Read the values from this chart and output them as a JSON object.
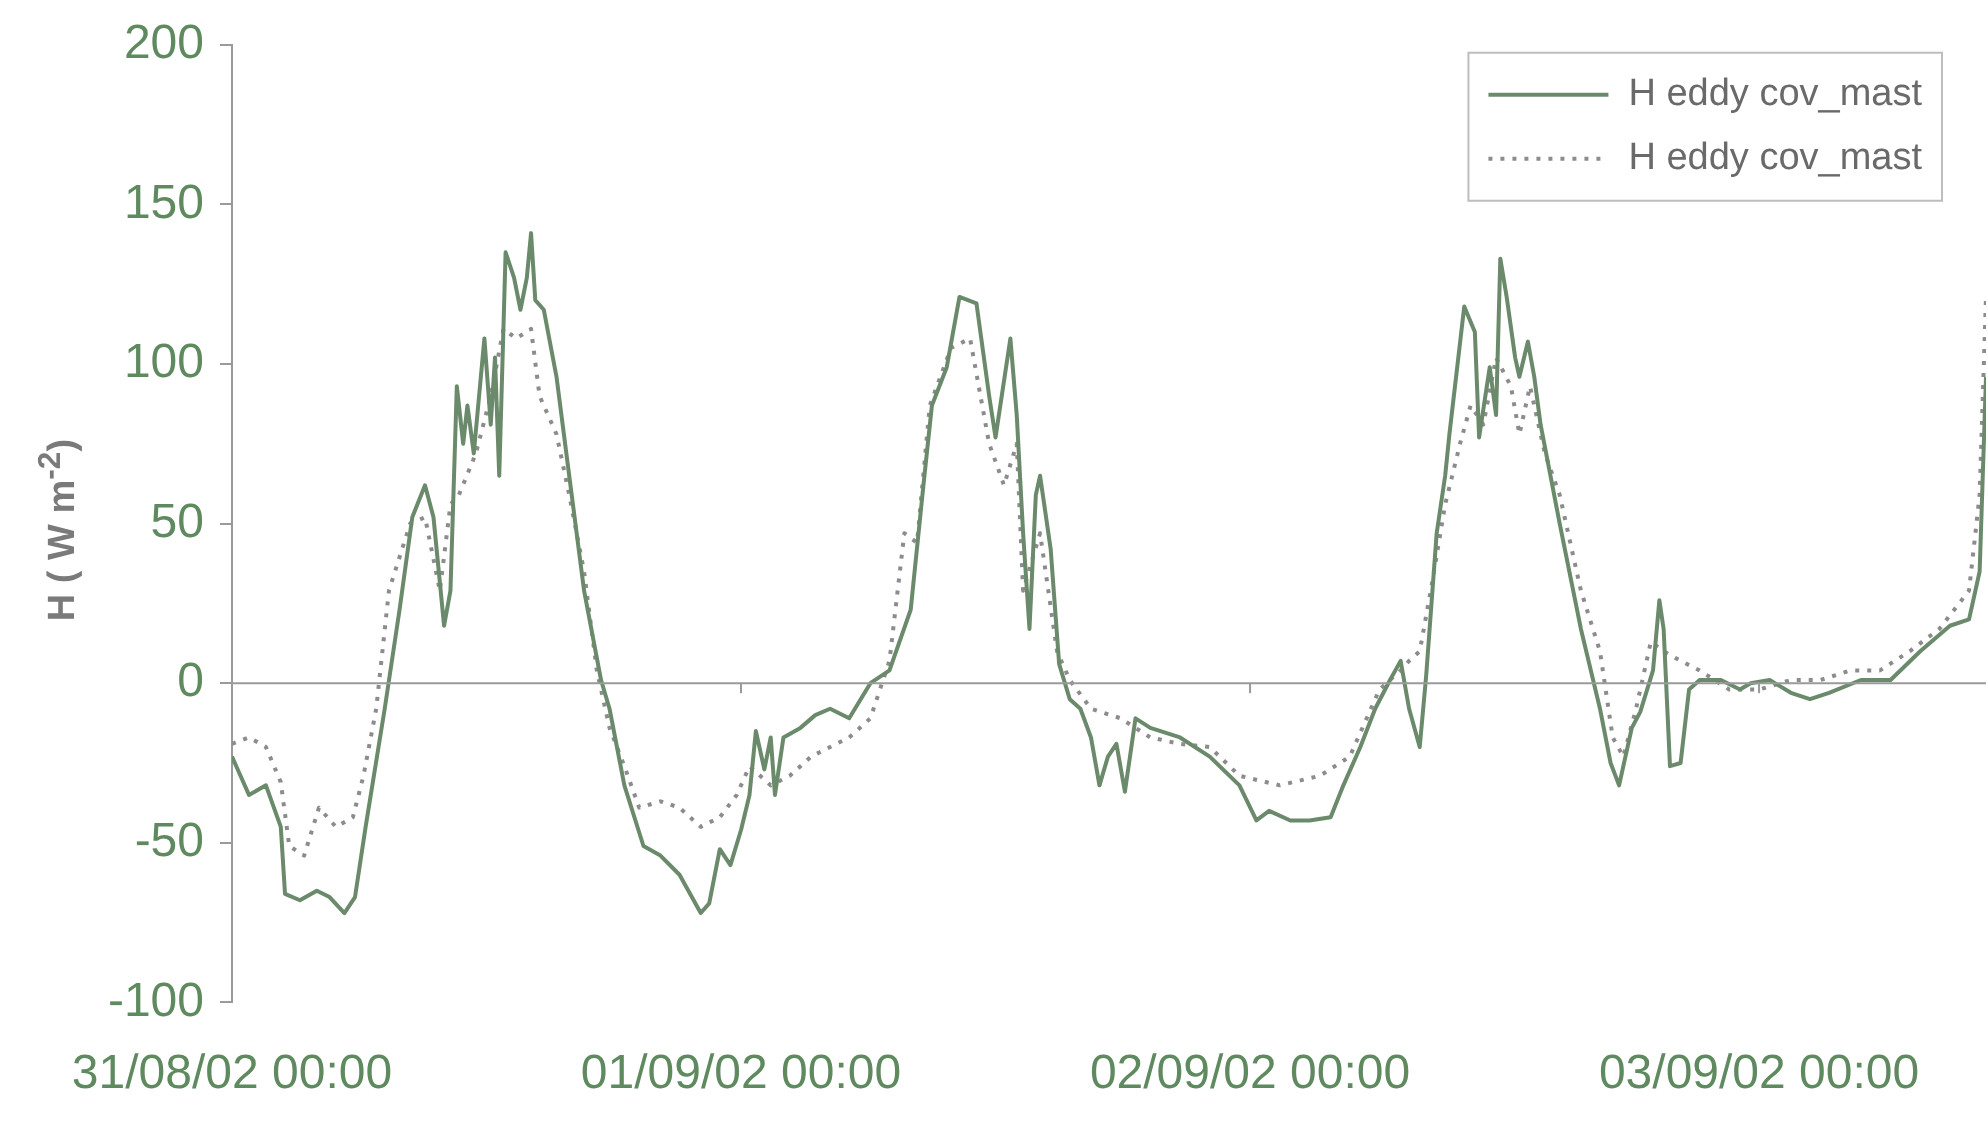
{
  "chart_data": {
    "type": "line",
    "ylabel": "H ( W m$^{-2}$)",
    "xlim": [
      "--08-31T00:00",
      "--09-03T10:42"
    ],
    "ylim": [
      -100,
      200
    ],
    "xticks": [
      {
        "value": "--08-31T00:00",
        "label": "31/08/02 00:00"
      },
      {
        "value": "--09-01T00:00",
        "label": "01/09/02 00:00"
      },
      {
        "value": "--09-02T00:00",
        "label": "02/09/02 00:00"
      },
      {
        "value": "--09-03T00:00",
        "label": "03/09/02 00:00"
      }
    ],
    "yticks": [
      -100,
      -50,
      0,
      50,
      100,
      150,
      200
    ],
    "grid": false,
    "legend": "top right",
    "marker": "none",
    "ref_lines": [
      {
        "axis": "y",
        "value": 0,
        "color": "#9a9a9a"
      }
    ],
    "series": [
      {
        "name": "H eddy cov_mast",
        "color": "#6b8a6b",
        "line_style": "solid",
        "x": [
          "--08-31T00:00",
          "--08-31T00:24",
          "--08-31T00:48",
          "--08-31T01:36",
          "--08-31T02:18",
          "--08-31T02:30",
          "--08-31T03:12",
          "--08-31T04:00",
          "--08-31T04:36",
          "--08-31T05:18",
          "--08-31T05:48",
          "--08-31T06:18",
          "--08-31T07:12",
          "--08-31T07:54",
          "--08-31T08:30",
          "--08-31T09:06",
          "--08-31T09:30",
          "--08-31T10:00",
          "--08-31T10:18",
          "--08-31T10:36",
          "--08-31T10:54",
          "--08-31T11:06",
          "--08-31T11:24",
          "--08-31T11:54",
          "--08-31T12:12",
          "--08-31T12:24",
          "--08-31T12:36",
          "--08-31T12:54",
          "--08-31T13:18",
          "--08-31T13:36",
          "--08-31T13:54",
          "--08-31T14:06",
          "--08-31T14:18",
          "--08-31T14:42",
          "--08-31T15:18",
          "--08-31T15:54",
          "--08-31T16:36",
          "--08-31T17:24",
          "--08-31T17:48",
          "--08-31T18:30",
          "--08-31T19:24",
          "--08-31T20:12",
          "--08-31T21:06",
          "--08-31T22:06",
          "--08-31T22:30",
          "--08-31T23:00",
          "--08-31T23:30",
          "--09-01T00:00",
          "--09-01T00:24",
          "--09-01T00:42",
          "--09-01T01:06",
          "--09-01T01:24",
          "--09-01T01:36",
          "--09-01T02:00",
          "--09-01T02:48",
          "--09-01T03:30",
          "--09-01T04:12",
          "--09-01T05:06",
          "--09-01T06:06",
          "--09-01T07:00",
          "--09-01T08:00",
          "--09-01T08:36",
          "--09-01T09:00",
          "--09-01T09:42",
          "--09-01T10:18",
          "--09-01T11:06",
          "--09-01T11:42",
          "--09-01T12:00",
          "--09-01T12:42",
          "--09-01T13:00",
          "--09-01T13:18",
          "--09-01T13:36",
          "--09-01T13:54",
          "--09-01T14:06",
          "--09-01T14:36",
          "--09-01T15:00",
          "--09-01T15:30",
          "--09-01T16:00",
          "--09-01T16:30",
          "--09-01T16:54",
          "--09-01T17:18",
          "--09-01T17:42",
          "--09-01T18:06",
          "--09-01T18:36",
          "--09-01T19:18",
          "--09-01T20:42",
          "--09-01T22:06",
          "--09-01T23:30",
          "--09-02T00:18",
          "--09-02T00:54",
          "--09-02T01:54",
          "--09-02T02:48",
          "--09-02T03:48",
          "--09-02T04:24",
          "--09-02T05:12",
          "--09-02T05:54",
          "--09-02T06:36",
          "--09-02T07:06",
          "--09-02T07:30",
          "--09-02T08:00",
          "--09-02T08:18",
          "--09-02T08:48",
          "--09-02T09:12",
          "--09-02T09:24",
          "--09-02T10:06",
          "--09-02T10:36",
          "--09-02T10:48",
          "--09-02T11:18",
          "--09-02T11:36",
          "--09-02T11:48",
          "--09-02T12:06",
          "--09-02T12:30",
          "--09-02T12:42",
          "--09-02T13:06",
          "--09-02T13:24",
          "--09-02T13:42",
          "--09-02T14:36",
          "--09-02T15:36",
          "--09-02T16:30",
          "--09-02T17:00",
          "--09-02T17:24",
          "--09-02T18:00",
          "--09-02T18:24",
          "--09-02T19:00",
          "--09-02T19:18",
          "--09-02T19:30",
          "--09-02T19:48",
          "--09-02T20:18",
          "--09-02T20:42",
          "--09-02T21:12",
          "--09-02T22:12",
          "--09-02T23:06",
          "--09-02T23:36",
          "--09-03T00:30",
          "--09-03T01:30",
          "--09-03T02:24",
          "--09-03T03:18",
          "--09-03T04:48",
          "--09-03T06:12",
          "--09-03T07:36",
          "--09-03T09:00",
          "--09-03T09:54",
          "--09-03T10:24",
          "--09-03T10:42"
        ],
        "values": [
          -23,
          -29,
          -35,
          -32,
          -45,
          -66,
          -68,
          -65,
          -67,
          -72,
          -67,
          -45,
          -8,
          23,
          52,
          62,
          52,
          18,
          29,
          93,
          75,
          87,
          72,
          108,
          81,
          102,
          65,
          135,
          127,
          117,
          127,
          141,
          120,
          117,
          96,
          65,
          29,
          1,
          -8,
          -32,
          -51,
          -54,
          -60,
          -72,
          -69,
          -52,
          -57,
          -46,
          -35,
          -15,
          -27,
          -17,
          -35,
          -17,
          -14,
          -10,
          -8,
          -11,
          0,
          4,
          23,
          62,
          87,
          99,
          121,
          119,
          90,
          77,
          108,
          84,
          47,
          17,
          59,
          65,
          42,
          6,
          -5,
          -8,
          -17,
          -32,
          -23,
          -19,
          -34,
          -11,
          -14,
          -17,
          -23,
          -32,
          -43,
          -40,
          -43,
          -43,
          -42,
          -32,
          -20,
          -8,
          1,
          7,
          -8,
          -20,
          2,
          47,
          65,
          78,
          118,
          110,
          77,
          99,
          84,
          133,
          121,
          102,
          96,
          107,
          96,
          81,
          50,
          17,
          -8,
          -25,
          -32,
          -14,
          -9,
          4,
          26,
          17,
          -26,
          -25,
          -2,
          1,
          1,
          -2,
          0,
          1,
          -3,
          -5,
          -3,
          1,
          1,
          10,
          18,
          20,
          35,
          96
        ]
      },
      {
        "name": "H eddy cov_mast",
        "color": "#8c8c8c",
        "line_style": "dotted",
        "x": [
          "--08-31T00:00",
          "--08-31T00:48",
          "--08-31T01:36",
          "--08-31T02:18",
          "--08-31T02:42",
          "--08-31T03:24",
          "--08-31T04:06",
          "--08-31T04:54",
          "--08-31T05:42",
          "--08-31T06:12",
          "--08-31T06:48",
          "--08-31T07:24",
          "--08-31T08:24",
          "--08-31T09:06",
          "--08-31T09:48",
          "--08-31T10:18",
          "--08-31T10:42",
          "--08-31T11:30",
          "--08-31T12:12",
          "--08-31T12:48",
          "--08-31T13:24",
          "--08-31T14:06",
          "--08-31T14:30",
          "--08-31T15:18",
          "--08-31T15:54",
          "--08-31T16:36",
          "--08-31T17:12",
          "--08-31T17:48",
          "--08-31T18:30",
          "--08-31T19:12",
          "--08-31T20:12",
          "--08-31T21:06",
          "--08-31T22:06",
          "--08-31T23:00",
          "--08-31T23:48",
          "--09-01T00:24",
          "--09-01T01:24",
          "--09-01T02:18",
          "--09-01T03:18",
          "--09-01T04:12",
          "--09-01T05:06",
          "--09-01T06:06",
          "--09-01T07:00",
          "--09-01T07:42",
          "--09-01T08:18",
          "--09-01T08:54",
          "--09-01T09:54",
          "--09-01T10:48",
          "--09-01T11:42",
          "--09-01T12:24",
          "--09-01T13:00",
          "--09-01T13:18",
          "--09-01T14:06",
          "--09-01T14:54",
          "--09-01T15:30",
          "--09-01T16:30",
          "--09-01T17:54",
          "--09-01T19:18",
          "--09-01T20:42",
          "--09-01T22:06",
          "--09-01T23:30",
          "--09-02T01:24",
          "--09-02T03:18",
          "--09-02T04:42",
          "--09-02T06:06",
          "--09-02T07:06",
          "--09-02T07:30",
          "--09-02T08:00",
          "--09-02T08:36",
          "--09-02T09:12",
          "--09-02T09:54",
          "--09-02T10:24",
          "--09-02T11:00",
          "--09-02T11:36",
          "--09-02T12:18",
          "--09-02T12:42",
          "--09-02T13:12",
          "--09-02T13:54",
          "--09-02T14:36",
          "--09-02T15:36",
          "--09-02T16:30",
          "--09-02T17:06",
          "--09-02T17:36",
          "--09-02T18:12",
          "--09-02T18:54",
          "--09-02T19:30",
          "--09-02T20:18",
          "--09-02T21:12",
          "--09-02T22:36",
          "--09-03T00:00",
          "--09-03T01:30",
          "--09-03T02:54",
          "--09-03T04:18",
          "--09-03T05:42",
          "--09-03T07:06",
          "--09-03T08:30",
          "--09-03T09:54",
          "--09-03T10:24",
          "--09-03T10:42"
        ],
        "values": [
          -19,
          -17,
          -20,
          -31,
          -51,
          -54,
          -39,
          -45,
          -42,
          -29,
          -8,
          29,
          50,
          52,
          29,
          56,
          59,
          72,
          90,
          111,
          108,
          111,
          90,
          78,
          59,
          35,
          4,
          -14,
          -26,
          -39,
          -37,
          -39,
          -45,
          -42,
          -35,
          -26,
          -32,
          -29,
          -23,
          -20,
          -17,
          -11,
          7,
          47,
          44,
          87,
          105,
          108,
          75,
          62,
          75,
          29,
          47,
          10,
          1,
          -8,
          -11,
          -17,
          -19,
          -20,
          -29,
          -32,
          -29,
          -23,
          -2,
          4,
          7,
          10,
          32,
          56,
          75,
          87,
          81,
          102,
          93,
          78,
          93,
          72,
          59,
          29,
          10,
          -17,
          -23,
          -8,
          13,
          10,
          7,
          4,
          -2,
          -2,
          1,
          1,
          4,
          4,
          10,
          17,
          29,
          59,
          121
        ]
      }
    ]
  }
}
